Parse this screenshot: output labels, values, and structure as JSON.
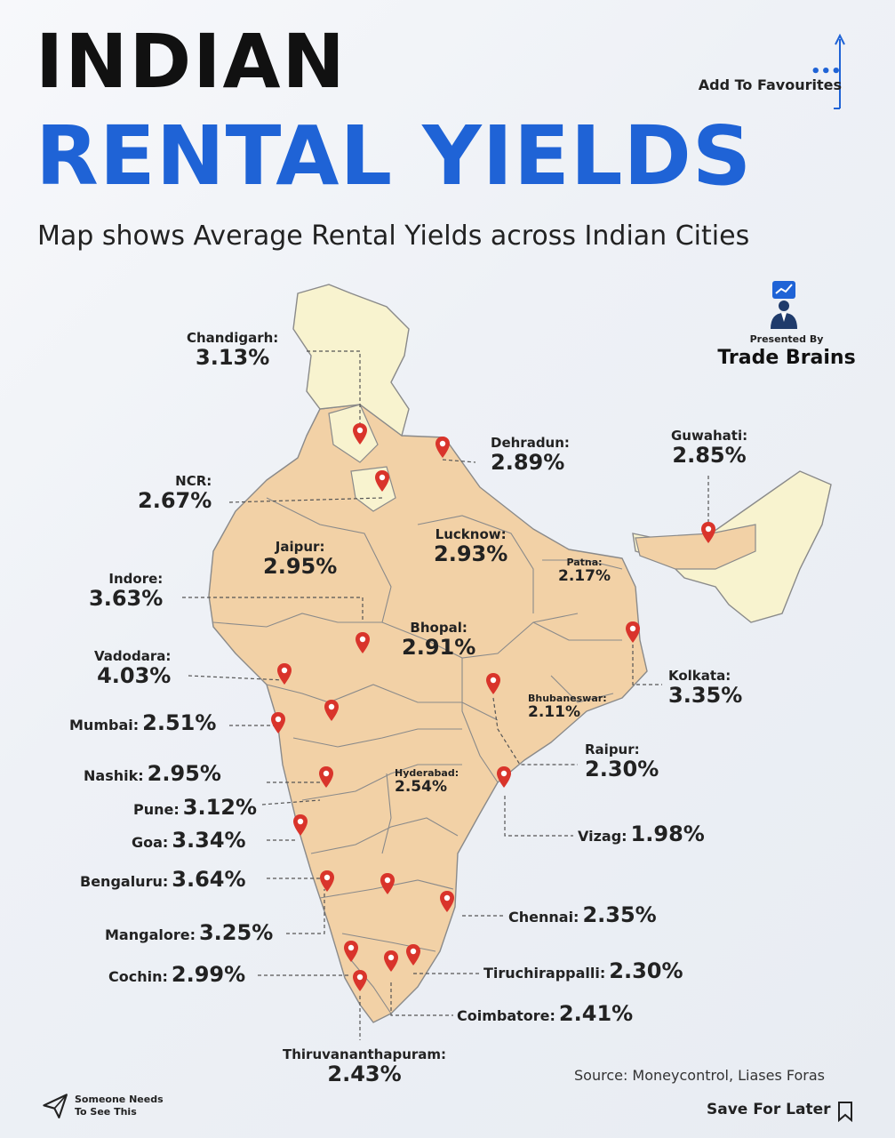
{
  "header": {
    "title_line1": "INDIAN",
    "title_line2": "RENTAL YIELDS",
    "subtitle": "Map shows Average Rental Yields across Indian Cities",
    "add_favourites": "Add To Favourites",
    "presented_by": "Presented By",
    "brand": "Trade Brains"
  },
  "cities": [
    {
      "name": "Chandigarh:",
      "yield": "3.13%"
    },
    {
      "name": "Dehradun:",
      "yield": "2.89%"
    },
    {
      "name": "Guwahati:",
      "yield": "2.85%"
    },
    {
      "name": "NCR:",
      "yield": "2.67%"
    },
    {
      "name": "Jaipur:",
      "yield": "2.95%"
    },
    {
      "name": "Lucknow:",
      "yield": "2.93%"
    },
    {
      "name": "Patna:",
      "yield": "2.17%"
    },
    {
      "name": "Indore:",
      "yield": "3.63%"
    },
    {
      "name": "Bhopal:",
      "yield": "2.91%"
    },
    {
      "name": "Vadodara:",
      "yield": "4.03%"
    },
    {
      "name": "Kolkata:",
      "yield": "3.35%"
    },
    {
      "name": "Bhubaneswar:",
      "yield": "2.11%"
    },
    {
      "name": "Mumbai:",
      "yield": "2.51%"
    },
    {
      "name": "Raipur:",
      "yield": "2.30%"
    },
    {
      "name": "Nashik:",
      "yield": "2.95%"
    },
    {
      "name": "Hyderabad:",
      "yield": "2.54%"
    },
    {
      "name": "Pune:",
      "yield": "3.12%"
    },
    {
      "name": "Vizag:",
      "yield": "1.98%"
    },
    {
      "name": "Goa:",
      "yield": "3.34%"
    },
    {
      "name": "Bengaluru:",
      "yield": "3.64%"
    },
    {
      "name": "Chennai:",
      "yield": "2.35%"
    },
    {
      "name": "Mangalore:",
      "yield": "3.25%"
    },
    {
      "name": "Tiruchirappalli:",
      "yield": "2.30%"
    },
    {
      "name": "Cochin:",
      "yield": "2.99%"
    },
    {
      "name": "Coimbatore:",
      "yield": "2.41%"
    },
    {
      "name": "Thiruvananthapuram:",
      "yield": "2.43%"
    }
  ],
  "footer": {
    "source": "Source: Moneycontrol, Liases Foras",
    "share_line1": "Someone Needs",
    "share_line2": "To See This",
    "save": "Save For Later"
  },
  "colors": {
    "accent": "#1f63d6",
    "region_fill": "#f2d1a6",
    "north_fill": "#f8f3cf",
    "pin": "#d9342b"
  },
  "icons": [
    "dots-icon",
    "arrow-up-icon",
    "presenter-icon",
    "map-pin-icon",
    "send-icon",
    "bookmark-icon"
  ]
}
